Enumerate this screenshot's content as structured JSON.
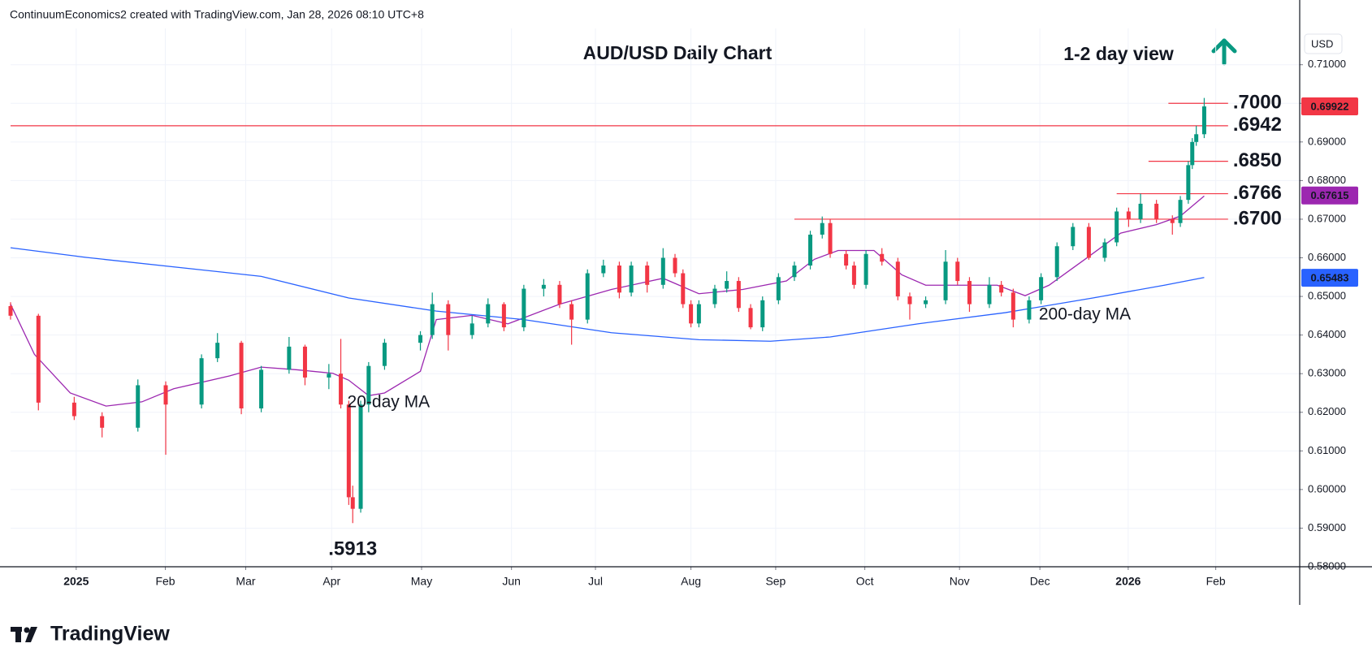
{
  "chart_data": {
    "type": "candlestick",
    "attribution": "ContinuumEconomics2 created with TradingView.com, Jan 28, 2026 08:10 UTC+8",
    "title": "AUD/USD Daily Chart",
    "view_label": "1-2 day view",
    "currency": "USD",
    "brand": "TradingView",
    "up_color": "#089981",
    "down_color": "#f23645",
    "grid": true,
    "xlim": [
      0,
      324
    ],
    "xticks": [
      {
        "value": 16.5,
        "label": "2025"
      },
      {
        "value": 38.9,
        "label": "Feb"
      },
      {
        "value": 59.1,
        "label": "Mar"
      },
      {
        "value": 80.7,
        "label": "Apr"
      },
      {
        "value": 103.3,
        "label": "May"
      },
      {
        "value": 125.9,
        "label": "Jun"
      },
      {
        "value": 147,
        "label": "Jul"
      },
      {
        "value": 171,
        "label": "Aug"
      },
      {
        "value": 192.3,
        "label": "Sep"
      },
      {
        "value": 214.7,
        "label": "Oct"
      },
      {
        "value": 238.5,
        "label": "Nov"
      },
      {
        "value": 258.7,
        "label": "Dec"
      },
      {
        "value": 280.9,
        "label": "2026"
      },
      {
        "value": 302.9,
        "label": "Feb"
      }
    ],
    "ylim": [
      0.58,
      0.7194
    ],
    "yticks": [
      {
        "value": 0.58,
        "label": "0.58000"
      },
      {
        "value": 0.59,
        "label": "0.59000"
      },
      {
        "value": 0.6,
        "label": "0.60000"
      },
      {
        "value": 0.61,
        "label": "0.61000"
      },
      {
        "value": 0.62,
        "label": "0.62000"
      },
      {
        "value": 0.63,
        "label": "0.63000"
      },
      {
        "value": 0.64,
        "label": "0.64000"
      },
      {
        "value": 0.65,
        "label": "0.65000"
      },
      {
        "value": 0.66,
        "label": "0.66000"
      },
      {
        "value": 0.67,
        "label": "0.67000"
      },
      {
        "value": 0.68,
        "label": "0.68000"
      },
      {
        "value": 0.69,
        "label": "0.69000"
      },
      {
        "value": 0.7,
        "label": "0.70000"
      },
      {
        "value": 0.71,
        "label": "0.71000"
      }
    ],
    "candles": {
      "x": [
        0,
        7,
        16,
        23,
        32,
        39,
        48,
        52,
        58,
        63,
        70,
        74,
        80,
        83,
        85,
        86,
        88,
        90,
        94,
        103,
        106,
        110,
        116,
        120,
        124,
        129,
        134,
        138,
        141,
        145,
        149,
        153,
        156,
        160,
        164,
        167,
        169,
        171,
        173,
        177,
        180,
        183,
        186,
        189,
        193,
        197,
        201,
        204,
        206,
        210,
        212,
        215,
        219,
        223,
        226,
        230,
        235,
        238,
        241,
        246,
        249,
        252,
        256,
        259,
        263,
        267,
        271,
        275,
        278,
        281,
        284,
        288,
        292,
        294,
        296,
        297,
        298,
        300
      ],
      "open": [
        0.6475,
        0.645,
        0.6225,
        0.619,
        0.616,
        0.627,
        0.622,
        0.634,
        0.638,
        0.621,
        0.631,
        0.637,
        0.629,
        0.63,
        0.622,
        0.598,
        0.595,
        0.622,
        0.632,
        0.638,
        0.64,
        0.648,
        0.64,
        0.643,
        0.648,
        0.642,
        0.652,
        0.653,
        0.648,
        0.644,
        0.656,
        0.658,
        0.651,
        0.658,
        0.653,
        0.66,
        0.656,
        0.648,
        0.643,
        0.648,
        0.652,
        0.654,
        0.647,
        0.642,
        0.649,
        0.655,
        0.658,
        0.666,
        0.669,
        0.661,
        0.658,
        0.653,
        0.661,
        0.659,
        0.65,
        0.648,
        0.649,
        0.659,
        0.654,
        0.648,
        0.653,
        0.651,
        0.644,
        0.649,
        0.655,
        0.663,
        0.668,
        0.66,
        0.664,
        0.672,
        0.67,
        0.674,
        0.67,
        0.669,
        0.675,
        0.684,
        0.69,
        0.692
      ],
      "high": [
        0.6485,
        0.6455,
        0.624,
        0.62,
        0.6285,
        0.628,
        0.635,
        0.6405,
        0.6385,
        0.632,
        0.6395,
        0.6375,
        0.6325,
        0.639,
        0.623,
        0.601,
        0.623,
        0.633,
        0.639,
        0.641,
        0.651,
        0.649,
        0.645,
        0.6495,
        0.6485,
        0.653,
        0.6545,
        0.654,
        0.649,
        0.657,
        0.6595,
        0.659,
        0.659,
        0.659,
        0.6625,
        0.661,
        0.657,
        0.649,
        0.649,
        0.653,
        0.6565,
        0.655,
        0.648,
        0.65,
        0.656,
        0.659,
        0.667,
        0.6707,
        0.67,
        0.662,
        0.659,
        0.662,
        0.6625,
        0.66,
        0.651,
        0.65,
        0.662,
        0.66,
        0.655,
        0.655,
        0.654,
        0.652,
        0.65,
        0.656,
        0.664,
        0.669,
        0.669,
        0.665,
        0.673,
        0.673,
        0.6766,
        0.675,
        0.671,
        0.676,
        0.685,
        0.691,
        0.6942,
        0.7014
      ],
      "low": [
        0.644,
        0.6205,
        0.618,
        0.6135,
        0.615,
        0.609,
        0.621,
        0.633,
        0.6195,
        0.62,
        0.63,
        0.627,
        0.626,
        0.621,
        0.596,
        0.5913,
        0.594,
        0.62,
        0.631,
        0.636,
        0.639,
        0.636,
        0.639,
        0.642,
        0.641,
        0.641,
        0.65,
        0.647,
        0.6375,
        0.643,
        0.655,
        0.6495,
        0.65,
        0.651,
        0.652,
        0.655,
        0.647,
        0.642,
        0.642,
        0.647,
        0.651,
        0.646,
        0.6415,
        0.641,
        0.648,
        0.654,
        0.657,
        0.665,
        0.66,
        0.657,
        0.652,
        0.652,
        0.658,
        0.649,
        0.644,
        0.647,
        0.648,
        0.653,
        0.646,
        0.647,
        0.65,
        0.642,
        0.643,
        0.648,
        0.654,
        0.662,
        0.6595,
        0.659,
        0.663,
        0.668,
        0.669,
        0.669,
        0.666,
        0.668,
        0.674,
        0.683,
        0.689,
        0.691
      ],
      "close": [
        0.645,
        0.6225,
        0.619,
        0.616,
        0.627,
        0.622,
        0.634,
        0.638,
        0.621,
        0.631,
        0.637,
        0.629,
        0.63,
        0.622,
        0.598,
        0.595,
        0.622,
        0.632,
        0.638,
        0.64,
        0.648,
        0.64,
        0.643,
        0.648,
        0.642,
        0.652,
        0.653,
        0.648,
        0.644,
        0.656,
        0.658,
        0.651,
        0.658,
        0.653,
        0.66,
        0.656,
        0.648,
        0.643,
        0.648,
        0.652,
        0.654,
        0.647,
        0.642,
        0.649,
        0.655,
        0.658,
        0.666,
        0.669,
        0.661,
        0.658,
        0.653,
        0.661,
        0.659,
        0.65,
        0.648,
        0.649,
        0.659,
        0.654,
        0.648,
        0.653,
        0.651,
        0.644,
        0.649,
        0.655,
        0.663,
        0.668,
        0.66,
        0.664,
        0.672,
        0.67,
        0.674,
        0.67,
        0.669,
        0.675,
        0.684,
        0.69,
        0.692,
        0.6992
      ]
    },
    "series": [
      {
        "name": "20-day MA",
        "color": "#9c27b0",
        "x": [
          0,
          6,
          15,
          24,
          33,
          41,
          55,
          63,
          72,
          81,
          85,
          90,
          94,
          103,
          107,
          116,
          125,
          138,
          151,
          164,
          173,
          184,
          195,
          202,
          208,
          217,
          224,
          230,
          239,
          248,
          255,
          261,
          270,
          279,
          288,
          294,
          300
        ],
        "values": [
          0.648,
          0.635,
          0.625,
          0.6216,
          0.6227,
          0.6261,
          0.6294,
          0.6317,
          0.631,
          0.6301,
          0.6283,
          0.6243,
          0.625,
          0.6306,
          0.644,
          0.6451,
          0.6429,
          0.648,
          0.6518,
          0.6547,
          0.6507,
          0.6518,
          0.654,
          0.6596,
          0.6619,
          0.6619,
          0.6556,
          0.6529,
          0.6529,
          0.6529,
          0.6502,
          0.6529,
          0.6596,
          0.6664,
          0.6686,
          0.6708,
          0.676
        ]
      },
      {
        "name": "200-day MA",
        "color": "#2962ff",
        "x": [
          0,
          19,
          63,
          85,
          107,
          129,
          151,
          173,
          191,
          206,
          228,
          250,
          272,
          290,
          300
        ],
        "values": [
          0.6626,
          0.6601,
          0.6552,
          0.6496,
          0.6462,
          0.644,
          0.6406,
          0.6388,
          0.6384,
          0.6395,
          0.6429,
          0.6458,
          0.6496,
          0.6529,
          0.6549
        ]
      }
    ],
    "levels": [
      {
        "value": 0.7,
        "label": ".7000",
        "x": [
          291,
          306
        ]
      },
      {
        "value": 0.6942,
        "label": ".6942",
        "x": [
          0,
          306
        ]
      },
      {
        "value": 0.685,
        "label": ".6850",
        "x": [
          286,
          306
        ]
      },
      {
        "value": 0.6766,
        "label": ".6766",
        "x": [
          278,
          306
        ]
      },
      {
        "value": 0.67,
        "label": ".6700",
        "x": [
          197,
          306
        ]
      }
    ],
    "low_annotation": {
      "value": 0.5913,
      "label": ".5913",
      "x": 86
    },
    "price_badges": [
      {
        "value": 0.69922,
        "color": "#f23645"
      },
      {
        "value": 0.67615,
        "color": "#9c27b0"
      },
      {
        "value": 0.65483,
        "color": "#2962ff"
      }
    ]
  }
}
